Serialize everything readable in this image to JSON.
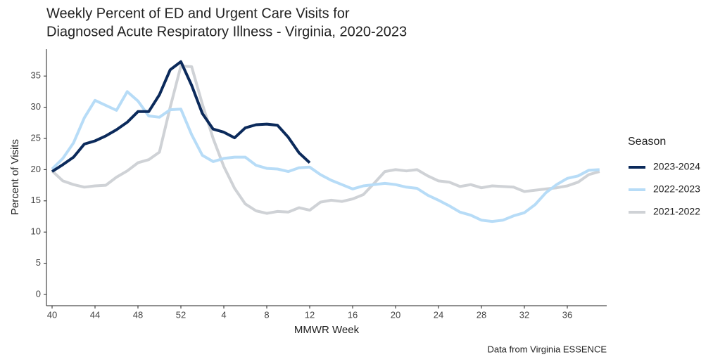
{
  "chart_data": {
    "type": "line",
    "title": [
      "Weekly Percent of ED and Urgent Care Visits for",
      "Diagnosed Acute Respiratory Illness - Virginia, 2020-2023"
    ],
    "x_label": "MMWR Week",
    "y_label": "Percent of Visits",
    "legend_title": "Season",
    "caption": "Data from Virginia ESSENCE",
    "categories": [
      "40",
      null,
      null,
      null,
      "44",
      null,
      null,
      null,
      "48",
      null,
      null,
      null,
      "52",
      null,
      null,
      null,
      "4",
      null,
      null,
      null,
      "8",
      null,
      null,
      null,
      "12",
      null,
      null,
      null,
      "16",
      null,
      null,
      null,
      "20",
      null,
      null,
      null,
      "24",
      null,
      null,
      null,
      "28",
      null,
      null,
      null,
      "32",
      null,
      null,
      null,
      "36",
      null,
      null,
      null
    ],
    "ylim": [
      -1.8,
      39.3
    ],
    "yticks": [
      0,
      5,
      10,
      15,
      20,
      25,
      30,
      35
    ],
    "series": [
      {
        "name": "2023-2024",
        "color": "#0b2a5b",
        "values": [
          19.7,
          20.8,
          22,
          24.1,
          24.6,
          25.4,
          26.4,
          27.6,
          29.3,
          29.3,
          32,
          36,
          37.3,
          33.5,
          29,
          26.5,
          26,
          25.1,
          26.7,
          27.2,
          27.3,
          27.1,
          25.2,
          22.7,
          21.1,
          null,
          null,
          null,
          null,
          null,
          null,
          null,
          null,
          null,
          null,
          null,
          null,
          null,
          null,
          null,
          null,
          null,
          null,
          null,
          null,
          null,
          null,
          null,
          null,
          null,
          null,
          null
        ]
      },
      {
        "name": "2022-2023",
        "color": "#b7dcf7",
        "values": [
          20.1,
          21.8,
          24.3,
          28.3,
          31.1,
          30.3,
          29.5,
          32.5,
          31,
          28.6,
          28.4,
          29.6,
          29.7,
          25.6,
          22.3,
          21.3,
          21.8,
          22,
          22,
          20.7,
          20.2,
          20.1,
          19.7,
          20.3,
          20.4,
          19.2,
          18.3,
          17.6,
          16.9,
          17.4,
          17.6,
          17.8,
          17.6,
          17.2,
          17,
          15.9,
          15.1,
          14.2,
          13.2,
          12.7,
          11.9,
          11.7,
          11.9,
          12.6,
          13.1,
          14.4,
          16.3,
          17.6,
          18.6,
          19,
          19.9,
          20
        ]
      },
      {
        "name": "2021-2022",
        "color": "#cfd2d6",
        "values": [
          19.8,
          18.2,
          17.6,
          17.2,
          17.4,
          17.5,
          18.8,
          19.8,
          21.1,
          21.6,
          22.8,
          30,
          36.6,
          36.5,
          30.5,
          25,
          20.5,
          17,
          14.5,
          13.4,
          13,
          13.3,
          13.2,
          13.9,
          13.5,
          14.8,
          15.1,
          14.9,
          15.3,
          16,
          17.8,
          19.7,
          20,
          19.8,
          20,
          19,
          18.2,
          18,
          17.3,
          17.6,
          17.1,
          17.4,
          17.3,
          17.2,
          16.5,
          16.7,
          16.9,
          17.1,
          17.4,
          18,
          19.2,
          19.7
        ]
      }
    ]
  }
}
